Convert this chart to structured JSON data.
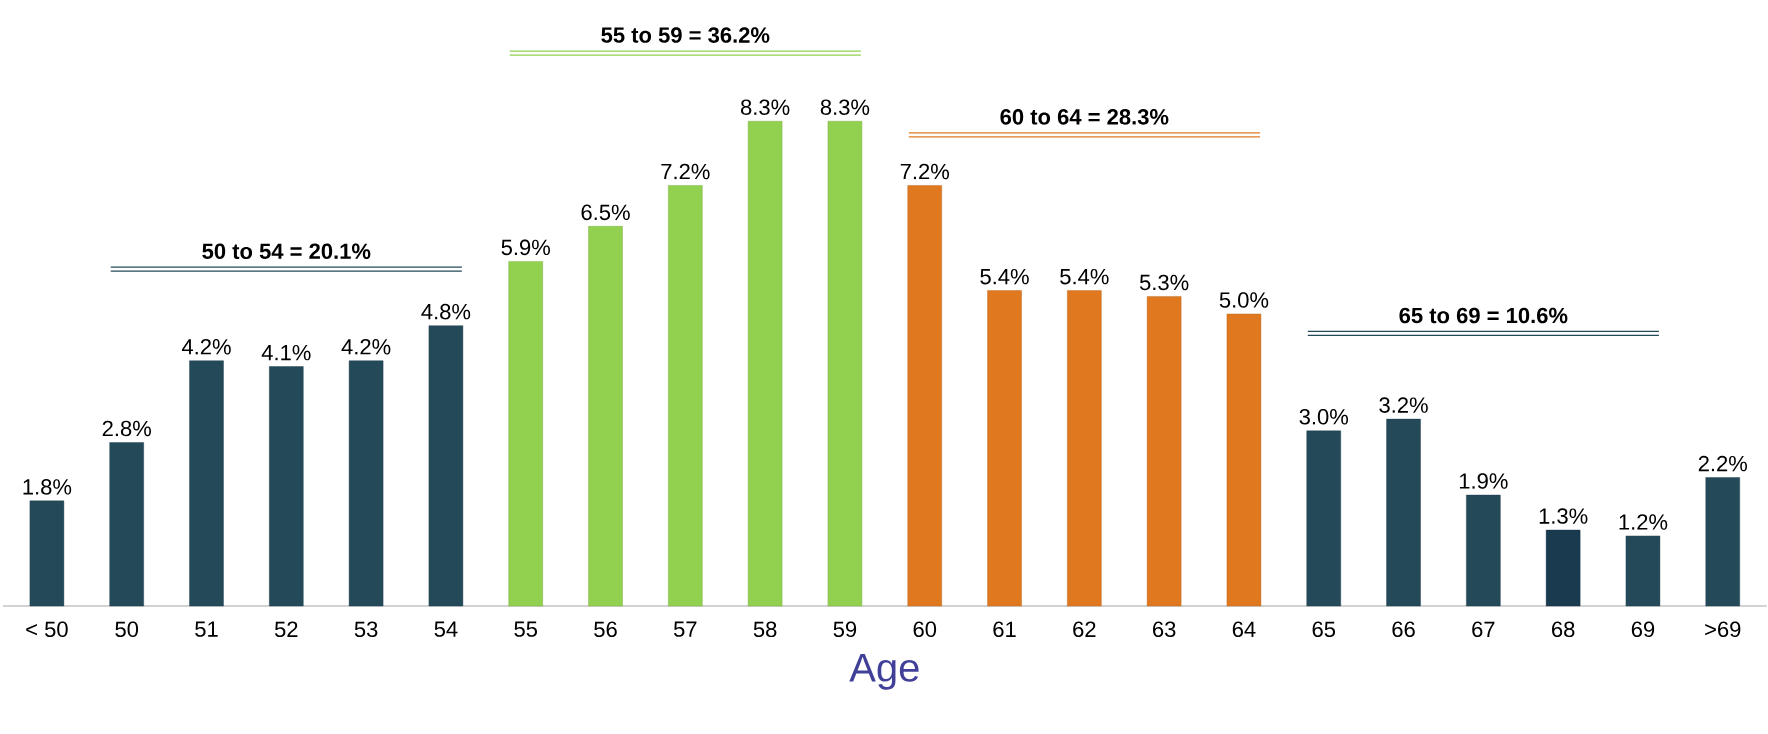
{
  "chart_data": {
    "type": "bar",
    "xlabel": "Age",
    "categories": [
      "< 50",
      "50",
      "51",
      "52",
      "53",
      "54",
      "55",
      "56",
      "57",
      "58",
      "59",
      "60",
      "61",
      "62",
      "63",
      "64",
      "65",
      "66",
      "67",
      "68",
      "69",
      ">69"
    ],
    "values": [
      1.8,
      2.8,
      4.2,
      4.1,
      4.2,
      4.8,
      5.9,
      6.5,
      7.2,
      8.3,
      8.3,
      7.2,
      5.4,
      5.4,
      5.3,
      5.0,
      3.0,
      3.2,
      1.9,
      1.3,
      1.2,
      2.2
    ],
    "value_labels": [
      "1.8%",
      "2.8%",
      "4.2%",
      "4.1%",
      "4.2%",
      "4.8%",
      "5.9%",
      "6.5%",
      "7.2%",
      "8.3%",
      "8.3%",
      "7.2%",
      "5.4%",
      "5.4%",
      "5.3%",
      "5.0%",
      "3.0%",
      "3.2%",
      "1.9%",
      "1.3%",
      "1.2%",
      "2.2%"
    ],
    "colors": [
      "#244a5a",
      "#244a5a",
      "#244a5a",
      "#244a5a",
      "#244a5a",
      "#244a5a",
      "#92d050",
      "#92d050",
      "#92d050",
      "#92d050",
      "#92d050",
      "#e07820",
      "#e07820",
      "#e07820",
      "#e07820",
      "#e07820",
      "#244a5a",
      "#244a5a",
      "#244a5a",
      "#1a3a50",
      "#244a5a",
      "#244a5a"
    ],
    "annotations": [
      "**50 to 54 = 20.1%**",
      "**55 to 59 = 36.2%**",
      "**60 to 64 = 28.3%**",
      "**65 to 69 = 10.6%**"
    ]
  }
}
